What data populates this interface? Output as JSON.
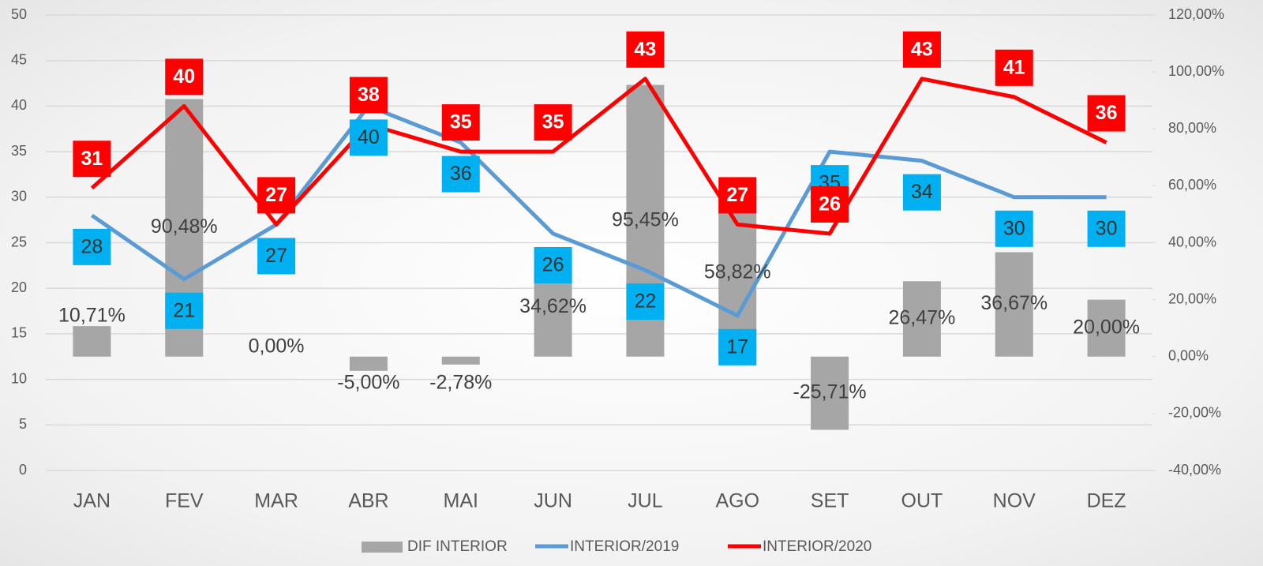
{
  "chart_data": {
    "type": "combo",
    "categories": [
      "JAN",
      "FEV",
      "MAR",
      "ABR",
      "MAI",
      "JUN",
      "JUL",
      "AGO",
      "SET",
      "OUT",
      "NOV",
      "DEZ"
    ],
    "ylim": [
      0,
      50
    ],
    "yticks": [
      0,
      5,
      10,
      15,
      20,
      25,
      30,
      35,
      40,
      45,
      50
    ],
    "y2lim": [
      -40,
      120
    ],
    "y2ticks": [
      {
        "value": -40,
        "label": "-40,00%"
      },
      {
        "value": -20,
        "label": "-20,00%"
      },
      {
        "value": 0,
        "label": "0,00%"
      },
      {
        "value": 20,
        "label": "20,00%"
      },
      {
        "value": 40,
        "label": "40,00%"
      },
      {
        "value": 60,
        "label": "60,00%"
      },
      {
        "value": 80,
        "label": "80,00%"
      },
      {
        "value": 100,
        "label": "100,00%"
      },
      {
        "value": 120,
        "label": "120,00%"
      }
    ],
    "grid": true,
    "legend": "bottom",
    "series": [
      {
        "name": "DIF INTERIOR",
        "type": "bar",
        "axis": "y2",
        "color": "#a6a6a6",
        "values": [
          10.71,
          90.48,
          0,
          -5,
          -2.78,
          34.62,
          95.45,
          58.82,
          -25.71,
          26.47,
          36.67,
          20
        ],
        "value_labels": [
          "10,71%",
          "90,48%",
          "0,00%",
          "-5,00%",
          "-2,78%",
          "34,62%",
          "95,45%",
          "58,82%",
          "-25,71%",
          "26,47%",
          "36,67%",
          "20,00%"
        ]
      },
      {
        "name": "INTERIOR/2019",
        "type": "line",
        "color": "#5b9bd5",
        "label_color": "#00b0f0",
        "values": [
          28,
          21,
          27,
          40,
          36,
          26,
          22,
          17,
          35,
          34,
          30,
          30
        ]
      },
      {
        "name": "INTERIOR/2020",
        "type": "line",
        "color": "#ff0000",
        "label_color": "#ff0000",
        "values": [
          31,
          40,
          27,
          38,
          35,
          35,
          43,
          27,
          26,
          43,
          41,
          36
        ]
      }
    ]
  }
}
